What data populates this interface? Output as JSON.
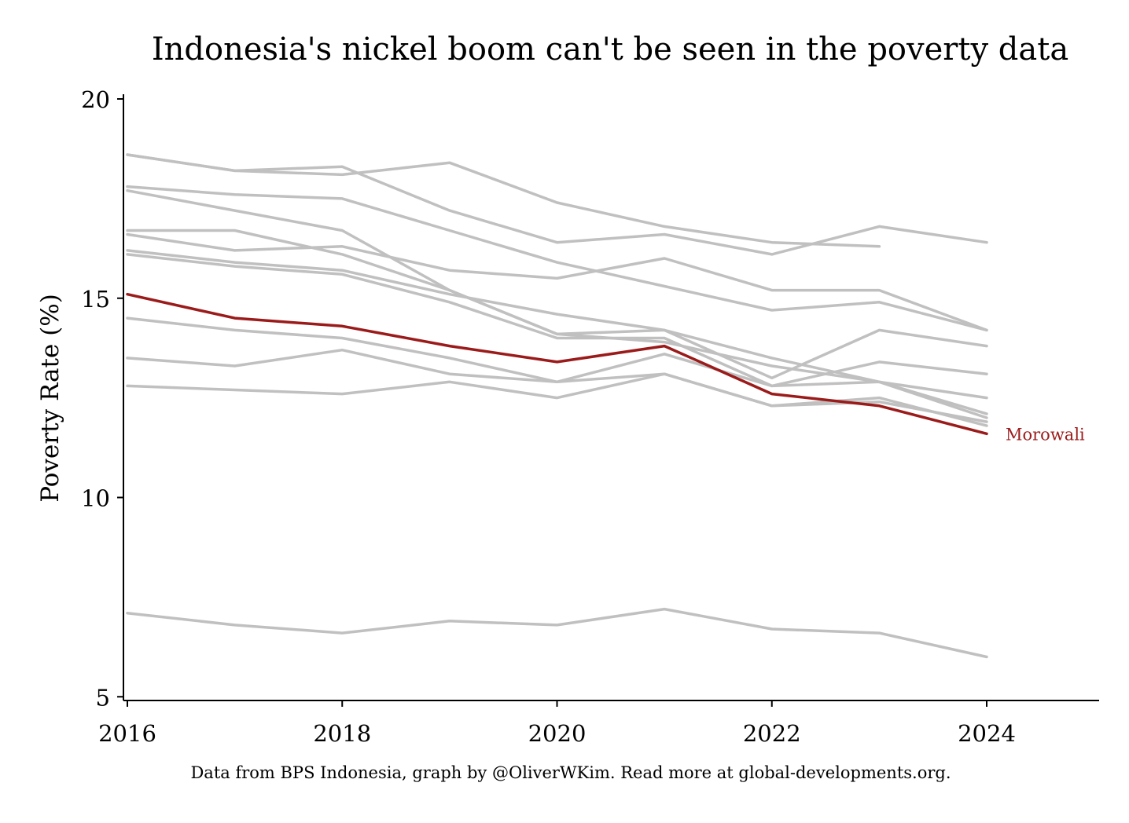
{
  "chart_data": {
    "type": "line",
    "title": "Indonesia's nickel boom can't be seen in the poverty data",
    "ylabel": "Poverty Rate (%)",
    "xlabel": "",
    "caption": "Data from BPS Indonesia, graph by @OliverWKim. Read more at global-developments.org.",
    "xlim": [
      2016,
      2025
    ],
    "ylim": [
      5,
      20
    ],
    "x_ticks": [
      "2016",
      "2018",
      "2020",
      "2022",
      "2024"
    ],
    "y_ticks": [
      "5",
      "10",
      "15",
      "20"
    ],
    "grid": false,
    "legend": "none",
    "x": [
      2016,
      2017,
      2018,
      2019,
      2020,
      2021,
      2022,
      2023,
      2024
    ],
    "highlight_color": "#9b1b1b",
    "background_color": "#c0c0c0",
    "series": [
      {
        "name": "",
        "values": [
          18.6,
          18.2,
          18.1,
          18.4,
          17.4,
          16.8,
          16.4,
          16.3,
          null
        ]
      },
      {
        "name": "",
        "values": [
          18.6,
          18.2,
          18.3,
          17.2,
          16.4,
          16.6,
          16.1,
          16.8,
          16.4
        ]
      },
      {
        "name": "",
        "values": [
          17.8,
          17.6,
          17.5,
          16.7,
          15.9,
          15.3,
          14.7,
          14.9,
          14.2
        ]
      },
      {
        "name": "",
        "values": [
          17.7,
          17.2,
          16.7,
          15.2,
          14.1,
          13.9,
          13.3,
          12.9,
          12.5
        ]
      },
      {
        "name": "",
        "values": [
          16.7,
          16.7,
          16.1,
          15.2,
          14.1,
          14.2,
          13.0,
          14.2,
          13.8
        ]
      },
      {
        "name": "",
        "values": [
          16.6,
          16.2,
          16.3,
          15.7,
          15.5,
          16.0,
          15.2,
          15.2,
          14.2
        ]
      },
      {
        "name": "",
        "values": [
          16.2,
          15.9,
          15.7,
          15.1,
          14.6,
          14.2,
          13.5,
          12.9,
          12.1
        ]
      },
      {
        "name": "",
        "values": [
          16.1,
          15.8,
          15.6,
          14.9,
          14.0,
          14.0,
          12.8,
          12.9,
          12.0
        ]
      },
      {
        "name": "",
        "values": [
          14.5,
          14.2,
          14.0,
          13.5,
          12.9,
          13.6,
          12.8,
          13.4,
          13.1
        ]
      },
      {
        "name": "",
        "values": [
          13.5,
          13.3,
          13.7,
          13.1,
          12.9,
          13.1,
          12.3,
          12.5,
          11.8
        ]
      },
      {
        "name": "",
        "values": [
          12.8,
          12.7,
          12.6,
          12.9,
          12.5,
          13.1,
          12.3,
          12.4,
          11.9
        ]
      },
      {
        "name": "",
        "values": [
          7.1,
          6.8,
          6.6,
          6.9,
          6.8,
          7.2,
          6.7,
          6.6,
          6.0
        ]
      },
      {
        "name": "Morowali",
        "highlight": true,
        "values": [
          15.1,
          14.5,
          14.3,
          13.8,
          13.4,
          13.8,
          12.6,
          12.3,
          11.6
        ]
      }
    ]
  }
}
